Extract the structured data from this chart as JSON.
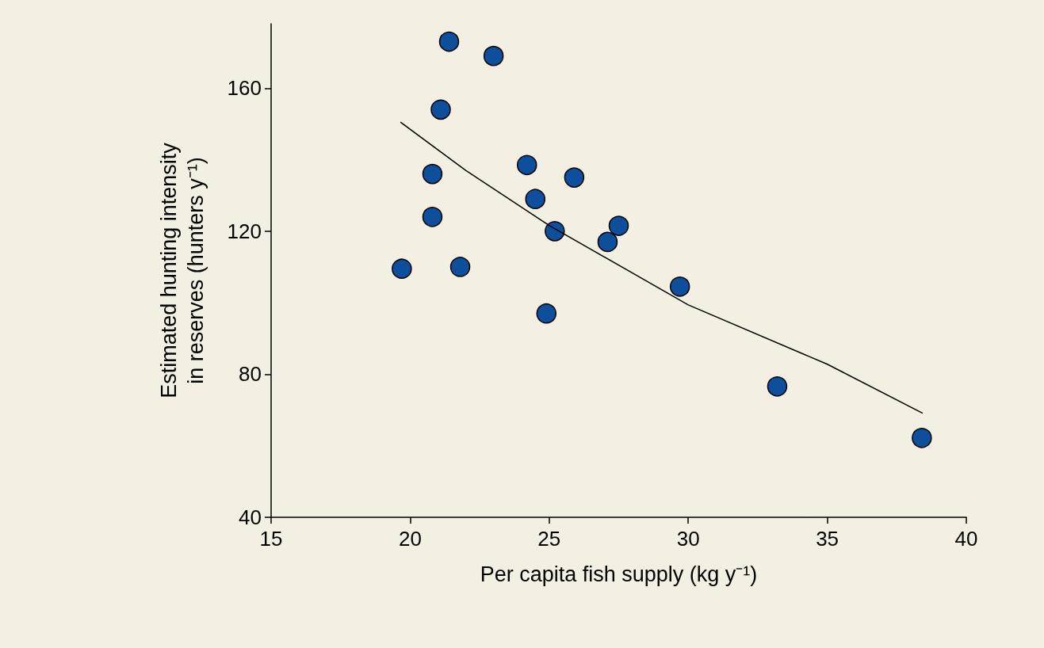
{
  "chart_data": {
    "type": "scatter",
    "xlabel": "Per capita fish supply (kg y⁻¹)",
    "ylabel": "Estimated hunting intensity\nin reserves (hunters y⁻¹)",
    "xlim": [
      15,
      40
    ],
    "xticks": [
      15,
      20,
      25,
      30,
      35,
      40
    ],
    "ylim": [
      40,
      178
    ],
    "yticks": [
      40,
      80,
      120,
      160
    ],
    "grid": false,
    "marker": "circle",
    "series": [
      {
        "color": "#0d4f9c",
        "x": [
          21.4,
          23.0,
          21.1,
          24.2,
          20.8,
          25.9,
          24.5,
          20.8,
          25.2,
          27.5,
          27.1,
          21.8,
          19.7,
          29.7,
          24.9,
          33.2,
          38.4
        ],
        "values": [
          173,
          169,
          154,
          138.5,
          136,
          135,
          129,
          124,
          120,
          121.5,
          117,
          110,
          109.5,
          104.5,
          97,
          76.6,
          62.2
        ]
      },
      {
        "type": "line",
        "color": "#000000",
        "marker": "none",
        "line_style": "solid",
        "x": [
          19.65,
          22,
          25,
          30,
          35,
          38.43
        ],
        "values": [
          150.5,
          137,
          121.6,
          99.4,
          82.8,
          69.1
        ]
      }
    ]
  }
}
